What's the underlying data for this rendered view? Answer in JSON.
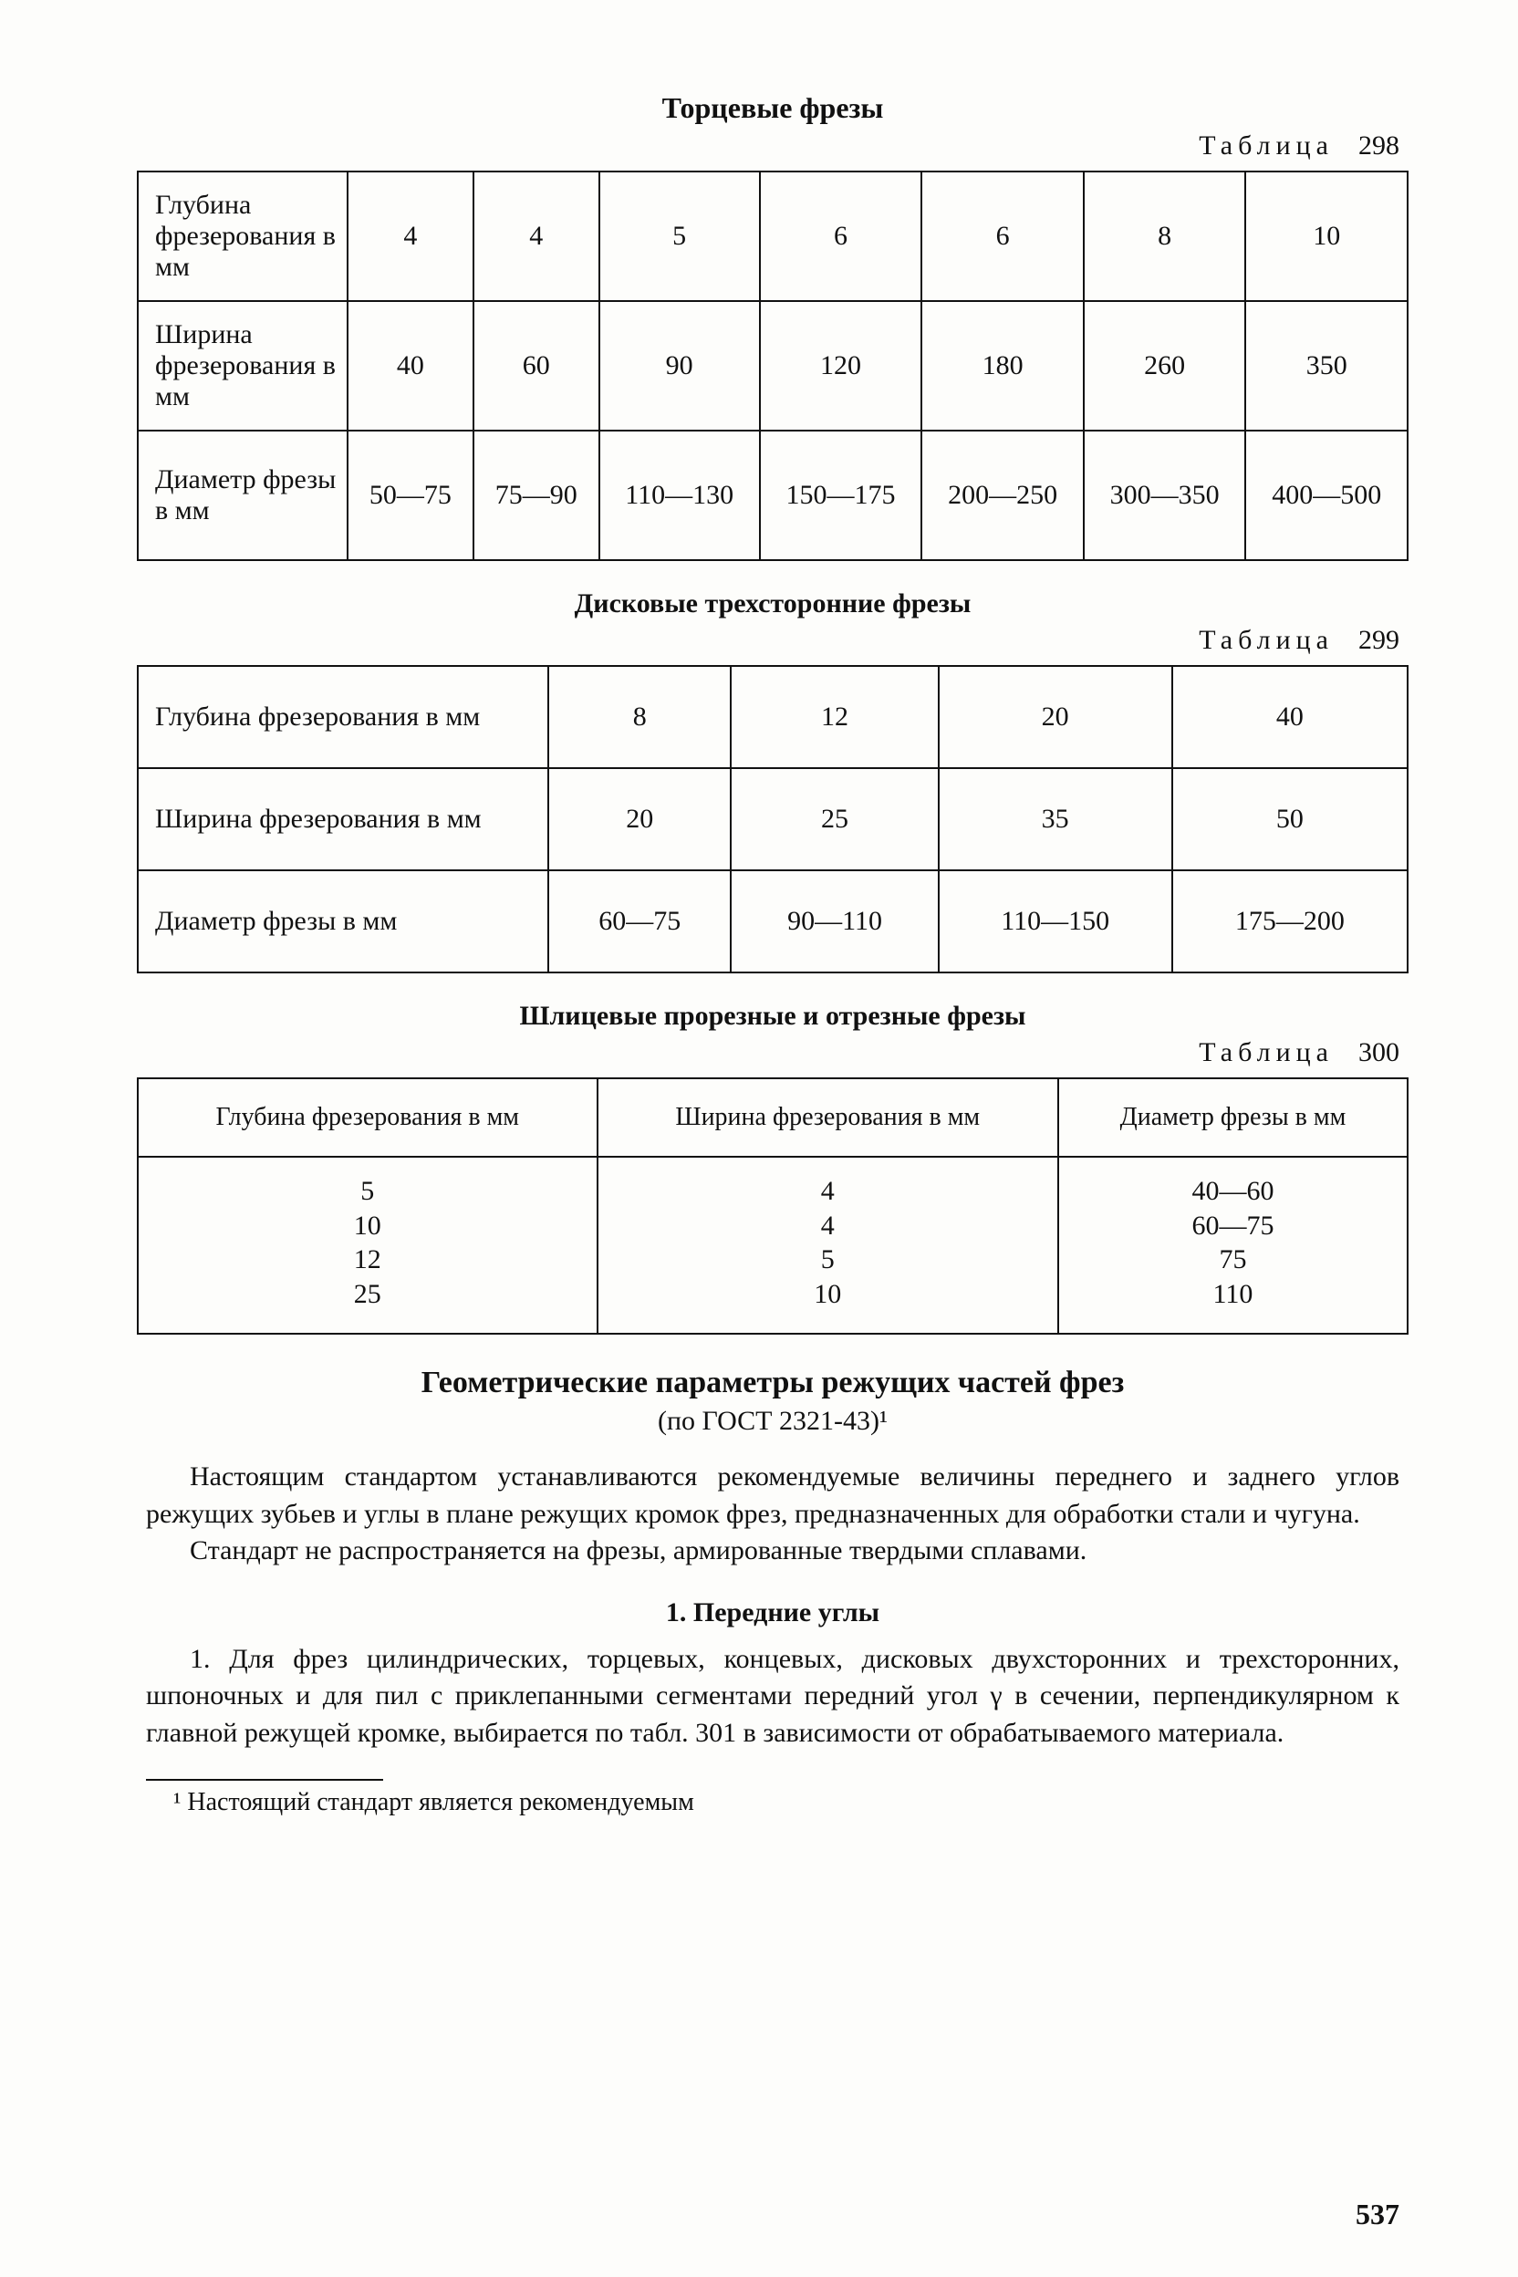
{
  "page_number": "537",
  "section1": {
    "title": "Торцевые фрезы",
    "table_label_prefix": "Таблица",
    "table_number": "298",
    "row_labels": {
      "depth": "Глубина фрезерова­ния в мм",
      "width": "Ширина фрезерова­ния в мм",
      "diam": "Диаметр фрезы в мм"
    },
    "cols": {
      "depth": [
        "4",
        "4",
        "5",
        "6",
        "6",
        "8",
        "10"
      ],
      "width": [
        "40",
        "60",
        "90",
        "120",
        "180",
        "260",
        "350"
      ],
      "diam": [
        "50—75",
        "75—90",
        "110—130",
        "150—175",
        "200—250",
        "300—350",
        "400—500"
      ]
    }
  },
  "section2": {
    "title": "Дисковые трехсторонние фрезы",
    "table_label_prefix": "Таблица",
    "table_number": "299",
    "row_labels": {
      "depth": "Глубина  фрезерования в мм",
      "width": "Ширина  фрезерования в мм",
      "diam": "Диаметр фрезы в мм"
    },
    "cols": {
      "depth": [
        "8",
        "12",
        "20",
        "40"
      ],
      "width": [
        "20",
        "25",
        "35",
        "50"
      ],
      "diam": [
        "60—75",
        "90—110",
        "110—150",
        "175—200"
      ]
    }
  },
  "section3": {
    "title": "Шлицевые прорезные и отрезные фрезы",
    "table_label_prefix": "Таблица",
    "table_number": "300",
    "headers": {
      "depth": "Глубина фрезерования в мм",
      "width": "Ширина фрезерования в мм",
      "diam": "Диаметр фрезы в мм"
    },
    "rows": {
      "depth": [
        "5",
        "10",
        "12",
        "25"
      ],
      "width": [
        "4",
        "4",
        "5",
        "10"
      ],
      "diam": [
        "40—60",
        "60—75",
        "75",
        "110"
      ]
    }
  },
  "aftertext": {
    "heading": "Геометрические параметры  режущих  частей фрез",
    "subheading": "(по ГОСТ 2321-43)¹",
    "para1": "Настоящим стандартом устанавливаются рекомендуемые величины переднего и заднего углов режущих зубьев и углы в плане режущих кромок фрез, предназна­ченных для обработки стали и чугуна.",
    "para2": "Стандарт не распространяется на фрезы, армированные твердыми сплавами.",
    "sub1_title": "1. Передние углы",
    "sub1_body": "1. Для фрез цилиндрических, торцевых, концевых, дисковых двухсторонних и трехсторонних, шпоночных и для пил с приклепанными сегментами передний угол γ в сечении, перпендикулярном к главной режущей кромке, выбирается по табл. 301 в зависимости от обрабатываемого материала.",
    "footnote": "¹ Настоящий стандарт является рекомендуемым"
  }
}
